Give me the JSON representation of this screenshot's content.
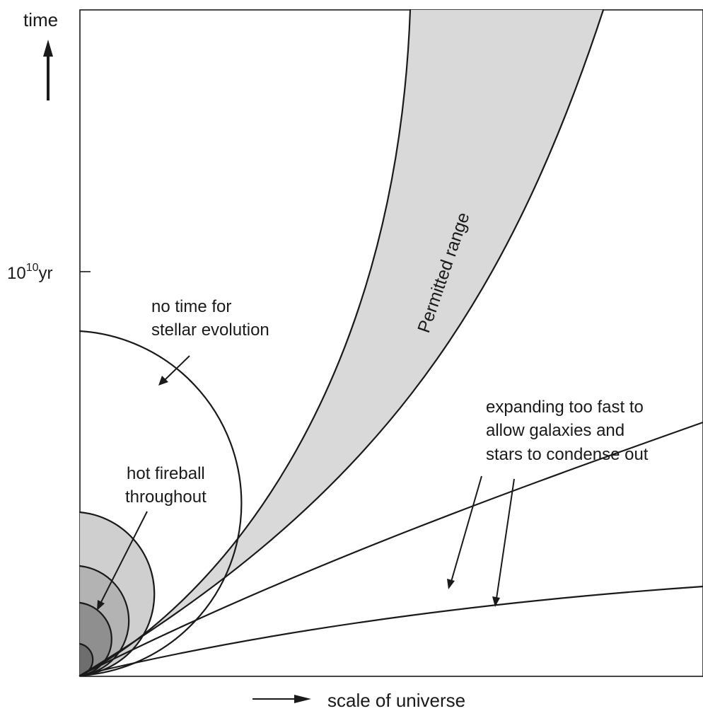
{
  "diagram": {
    "axes": {
      "y_label": "time",
      "x_label": "scale of universe",
      "tick_label_base": "10",
      "tick_label_exponent": "10",
      "tick_label_unit": "yr"
    },
    "regions": {
      "permitted": "Permitted range",
      "fireball_line1": "hot fireball",
      "fireball_line2": "throughout",
      "stellar_line1": "no time for",
      "stellar_line2": "stellar evolution",
      "fast_line1": "expanding too fast to",
      "fast_line2": "allow galaxies and",
      "fast_line3": "stars to condense out"
    },
    "colors": {
      "ink": "#1a1a1a",
      "permitted_fill": "#d9d9d9",
      "fireball_outer": "#cfcfcf",
      "fireball_mid": "#b3b3b3",
      "fireball_inner": "#8f8f8f"
    }
  }
}
